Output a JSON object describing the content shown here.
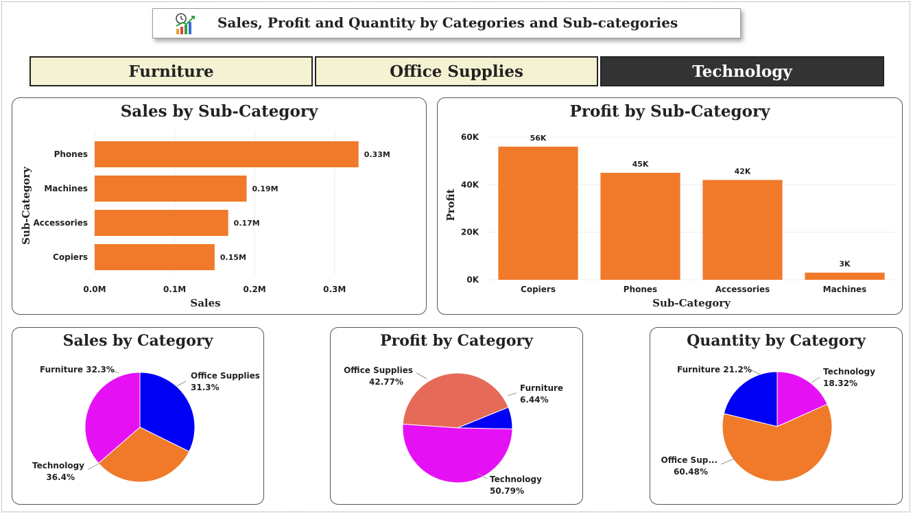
{
  "header": {
    "title": "Sales, Profit and Quantity by Categories and Sub-categories",
    "logo_icon": "chart-growth-icon"
  },
  "tabs": [
    {
      "label": "Furniture",
      "selected": false
    },
    {
      "label": "Office Supplies",
      "selected": false
    },
    {
      "label": "Technology",
      "selected": true
    }
  ],
  "colors": {
    "bar": "#F07A2A",
    "furniture": "#0000F5",
    "office_supplies": "#F07A2A",
    "technology": "#E610F5",
    "office_supplies_profit": "#E56B58",
    "tab_light": "#F4F2D2",
    "tab_dark": "#333333"
  },
  "chart_data": [
    {
      "id": "sales_by_subcategory",
      "type": "bar",
      "orientation": "horizontal",
      "title": "Sales by Sub-Category",
      "xlabel": "Sales",
      "ylabel": "Sub-Category",
      "categories": [
        "Phones",
        "Machines",
        "Accessories",
        "Copiers"
      ],
      "values": [
        330000,
        190000,
        167000,
        150000
      ],
      "data_labels": [
        "0.33M",
        "0.19M",
        "0.17M",
        "0.15M"
      ],
      "xticks": [
        "0.0M",
        "0.1M",
        "0.2M",
        "0.3M"
      ],
      "xtick_values": [
        0,
        100000,
        200000,
        300000
      ],
      "xlim": [
        0,
        380000
      ],
      "grid": true
    },
    {
      "id": "profit_by_subcategory",
      "type": "bar",
      "orientation": "vertical",
      "title": "Profit by Sub-Category",
      "xlabel": "Sub-Category",
      "ylabel": "Profit",
      "categories": [
        "Copiers",
        "Phones",
        "Accessories",
        "Machines"
      ],
      "values": [
        56000,
        45000,
        42000,
        3000
      ],
      "data_labels": [
        "56K",
        "45K",
        "42K",
        "3K"
      ],
      "yticks": [
        "0K",
        "20K",
        "40K",
        "60K"
      ],
      "ytick_values": [
        0,
        20000,
        40000,
        60000
      ],
      "ylim": [
        0,
        60000
      ],
      "grid": true
    },
    {
      "id": "sales_by_category",
      "type": "pie",
      "title": "Sales by Category",
      "slices": [
        {
          "label": "Furniture",
          "value": 32.3,
          "display": "Furniture 32.3%",
          "color": "#0000F5"
        },
        {
          "label": "Office Supplies",
          "value": 31.3,
          "display": "Office Supplies 31.3%",
          "color": "#F07A2A"
        },
        {
          "label": "Technology",
          "value": 36.4,
          "display": "Technology 36.4%",
          "color": "#E610F5"
        }
      ]
    },
    {
      "id": "profit_by_category",
      "type": "pie",
      "title": "Profit by Category",
      "slices": [
        {
          "label": "Office Supplies",
          "value": 42.77,
          "display": "Office Supplies 42.77%",
          "color": "#E56B58"
        },
        {
          "label": "Furniture",
          "value": 6.44,
          "display": "Furniture 6.44%",
          "color": "#0000F5"
        },
        {
          "label": "Technology",
          "value": 50.79,
          "display": "Technology 50.79%",
          "color": "#E610F5"
        }
      ]
    },
    {
      "id": "quantity_by_category",
      "type": "pie",
      "title": "Quantity by Category",
      "slices": [
        {
          "label": "Furniture",
          "value": 21.2,
          "display": "Furniture 21.2%",
          "color": "#0000F5"
        },
        {
          "label": "Technology",
          "value": 18.32,
          "display": "Technology 18.32%",
          "color": "#E610F5"
        },
        {
          "label": "Office Supplies",
          "value": 60.48,
          "display": "Office Sup... 60.48%",
          "color": "#F07A2A"
        }
      ]
    }
  ]
}
